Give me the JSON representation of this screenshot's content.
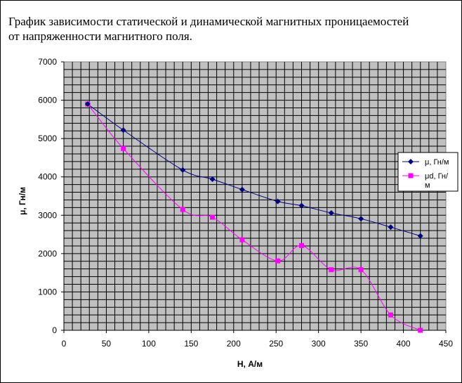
{
  "title_lines": [
    "График зависимости статической и динамической магнитных проницаемостей",
    "от напряженности магнитного поля."
  ],
  "chart_data": {
    "type": "line",
    "title": "График зависимости статической и динамической магнитных проницаемостей от напряженности магнитного поля.",
    "xlabel": "H, А/м",
    "ylabel": "μ, Гн/м",
    "xlim": [
      0,
      450
    ],
    "ylim": [
      0,
      7000
    ],
    "x_ticks": [
      0,
      50,
      100,
      150,
      200,
      250,
      300,
      350,
      400,
      450
    ],
    "y_ticks": [
      0,
      1000,
      2000,
      3000,
      4000,
      5000,
      6000,
      7000
    ],
    "grid": true,
    "legend_position": "right",
    "x": [
      28,
      70,
      140,
      175,
      210,
      252,
      280,
      315,
      350,
      385,
      420
    ],
    "series": [
      {
        "name": "μ, Гн/м",
        "legend_lines": [
          "μ, Гн/м"
        ],
        "color": "#000080",
        "marker": "diamond",
        "values": [
          5900,
          5220,
          4180,
          3940,
          3670,
          3360,
          3250,
          3060,
          2910,
          2690,
          2460
        ]
      },
      {
        "name": "μd, Гн/м",
        "legend_lines": [
          "μd, Гн/",
          "м"
        ],
        "color": "#ff00ff",
        "marker": "square",
        "values": [
          5900,
          4740,
          3150,
          2950,
          2360,
          1810,
          2210,
          1580,
          1580,
          400,
          0
        ]
      }
    ]
  }
}
